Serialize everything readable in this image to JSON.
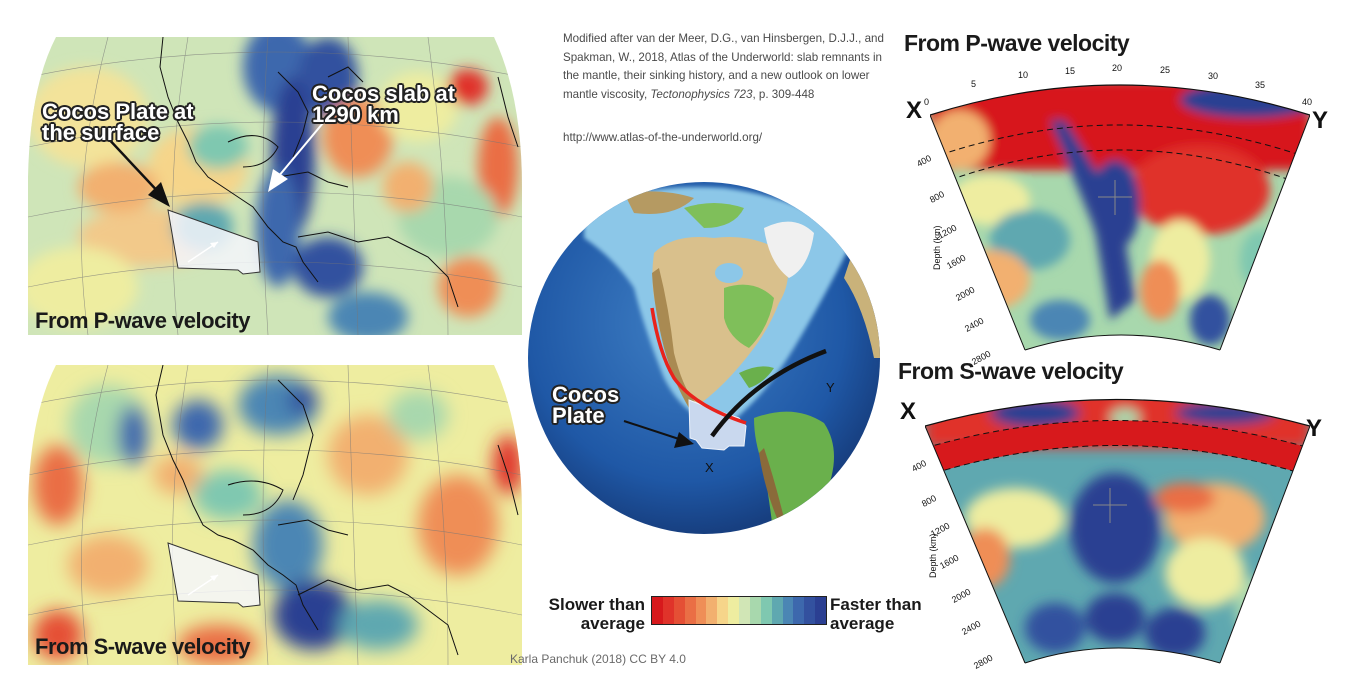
{
  "citation": {
    "prefix": "Modified after van der Meer, D.G., van Hinsbergen, D.J.J., and Spakman, W., 2018, Atlas of the Underworld: slab remnants in the mantle, their sinking history, and a new outlook on lower mantle viscosity, ",
    "journal": "Tectonophysics 723",
    "suffix": ", p. 309-448",
    "url": "http://www.atlas-of-the-underworld.org/"
  },
  "maps": {
    "p_wave": {
      "label": "From P-wave velocity",
      "callout_plate": "Cocos Plate at the surface",
      "callout_plate_line1": "Cocos Plate at",
      "callout_plate_line2": "the surface",
      "callout_slab_line1": "Cocos slab at",
      "callout_slab_line2": "1290 km"
    },
    "s_wave": {
      "label": "From S-wave velocity"
    }
  },
  "globe": {
    "callout_line1": "Cocos",
    "callout_line2": "Plate",
    "point_x": "X",
    "point_y": "Y"
  },
  "cross_sections": {
    "p_wave": {
      "title": "From P-wave velocity",
      "left_label": "X",
      "right_label": "Y",
      "degree_ticks": [
        "0",
        "5",
        "10",
        "15",
        "20",
        "25",
        "30",
        "35",
        "40"
      ],
      "depth_ticks": [
        "400",
        "800",
        "1200",
        "1600",
        "2000",
        "2400",
        "2800"
      ],
      "depth_axis_label": "Depth (km)"
    },
    "s_wave": {
      "title": "From S-wave velocity",
      "left_label": "X",
      "right_label": "Y",
      "depth_ticks": [
        "400",
        "800",
        "1200",
        "1600",
        "2000",
        "2400",
        "2800"
      ],
      "depth_axis_label": "Depth (km)"
    }
  },
  "legend": {
    "slower_line1": "Slower than",
    "slower_line2": "average",
    "faster_line1": "Faster than",
    "faster_line2": "average",
    "colors": [
      "#d7191c",
      "#e0332a",
      "#e54f35",
      "#ea6e45",
      "#ef8e57",
      "#f2b06f",
      "#f6d58a",
      "#eeeda0",
      "#d1e6b6",
      "#a8d8ad",
      "#7fc8b0",
      "#5fa8b0",
      "#4b86b4",
      "#3d68ad",
      "#33519f",
      "#2b3f92"
    ]
  },
  "credit": "Karla Panchuk (2018) CC BY 4.0"
}
